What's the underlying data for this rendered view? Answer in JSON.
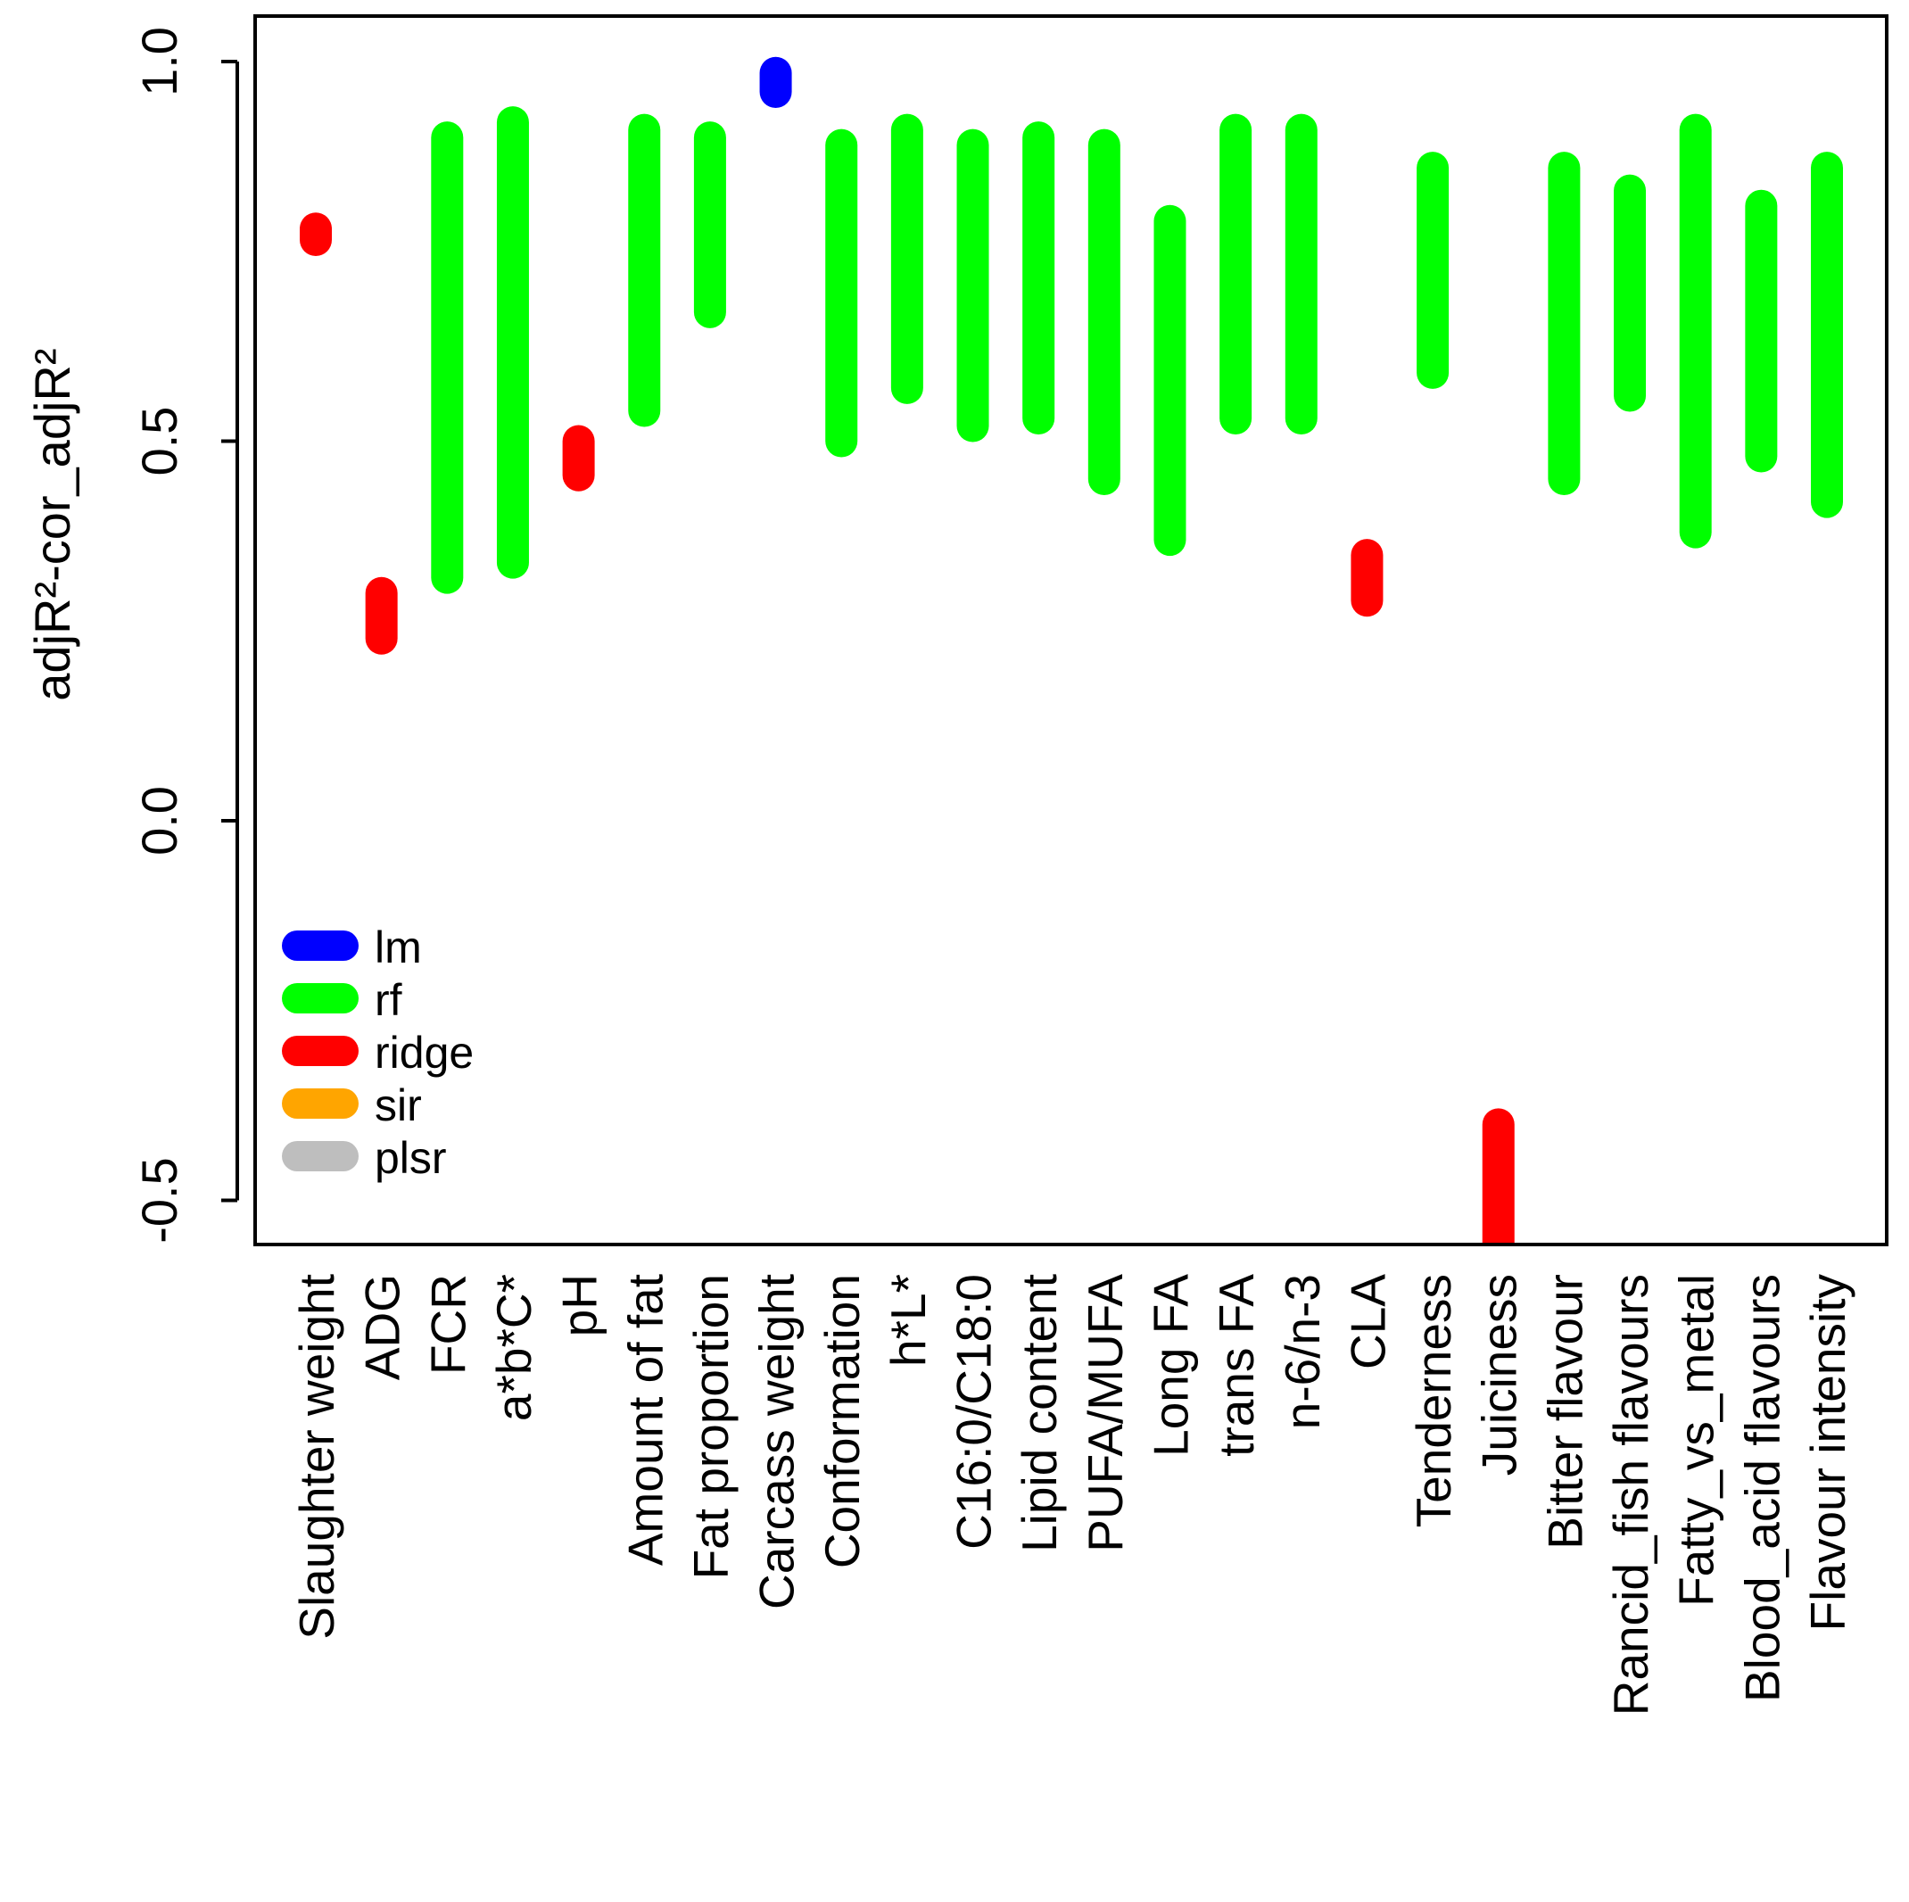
{
  "chart_data": {
    "type": "range-bar",
    "title": "",
    "xlabel": "",
    "ylabel": "adjR²-cor_adjR²",
    "ylim": [
      -0.555,
      1.06
    ],
    "yticks": [
      -0.5,
      0.0,
      0.5,
      1.0
    ],
    "ytick_labels": [
      "-0.5",
      "0.0",
      "0.5",
      "1.0"
    ],
    "categories": [
      "Slaughter weight",
      "ADG",
      "FCR",
      "a*b*C*",
      "pH",
      "Amount of fat",
      "Fat proportion",
      "Carcass weight",
      "Conformation",
      "h*L*",
      "C16:0/C18:0",
      "Lipid content",
      "PUFA/MUFA",
      "Long FA",
      "trans FA",
      "n-6/n-3",
      "CLA",
      "Tenderness",
      "Juiciness",
      "Bitter flavour",
      "Rancid_fish flavours",
      "Fatty_vs_metal",
      "Blood_acid flavours",
      "Flavour intensity"
    ],
    "series": [
      {
        "name": "lm",
        "color": "#0000ff",
        "ranges": [
          null,
          null,
          null,
          null,
          null,
          null,
          null,
          [
            0.96,
            0.985
          ],
          null,
          null,
          null,
          null,
          null,
          null,
          null,
          null,
          null,
          null,
          null,
          null,
          null,
          null,
          null,
          null
        ]
      },
      {
        "name": "rf",
        "color": "#00ff00",
        "ranges": [
          null,
          null,
          [
            0.32,
            0.9
          ],
          [
            0.34,
            0.92
          ],
          null,
          [
            0.54,
            0.91
          ],
          [
            0.67,
            0.9
          ],
          null,
          [
            0.5,
            0.89
          ],
          [
            0.57,
            0.91
          ],
          [
            0.52,
            0.89
          ],
          [
            0.53,
            0.9
          ],
          [
            0.45,
            0.89
          ],
          [
            0.37,
            0.79
          ],
          [
            0.53,
            0.91
          ],
          [
            0.53,
            0.91
          ],
          null,
          [
            0.59,
            0.86
          ],
          null,
          [
            0.45,
            0.86
          ],
          [
            0.56,
            0.83
          ],
          [
            0.38,
            0.91
          ],
          [
            0.48,
            0.81
          ],
          [
            0.42,
            0.86
          ]
        ]
      },
      {
        "name": "ridge",
        "color": "#ff0000",
        "ranges": [
          [
            0.765,
            0.78
          ],
          [
            0.24,
            0.3
          ],
          null,
          null,
          [
            0.455,
            0.5
          ],
          null,
          null,
          null,
          null,
          null,
          null,
          null,
          null,
          null,
          null,
          null,
          [
            0.29,
            0.35
          ],
          null,
          [
            -0.555,
            -0.4
          ],
          null,
          null,
          null,
          null,
          null
        ]
      },
      {
        "name": "sir",
        "color": "#ffa500",
        "ranges": [
          null,
          null,
          null,
          null,
          null,
          null,
          null,
          null,
          null,
          null,
          null,
          null,
          null,
          null,
          null,
          null,
          null,
          null,
          null,
          null,
          null,
          null,
          null,
          null
        ]
      },
      {
        "name": "plsr",
        "color": "#bebebe",
        "ranges": [
          null,
          null,
          null,
          null,
          null,
          null,
          null,
          null,
          null,
          null,
          null,
          null,
          null,
          null,
          null,
          null,
          null,
          null,
          null,
          null,
          null,
          null,
          null,
          null
        ]
      }
    ],
    "legend": {
      "position": "bottom-left",
      "entries": [
        {
          "label": "lm",
          "color": "#0000ff"
        },
        {
          "label": "rf",
          "color": "#00ff00"
        },
        {
          "label": "ridge",
          "color": "#ff0000"
        },
        {
          "label": "sir",
          "color": "#ffa500"
        },
        {
          "label": "plsr",
          "color": "#bebebe"
        }
      ]
    },
    "grid": false
  }
}
